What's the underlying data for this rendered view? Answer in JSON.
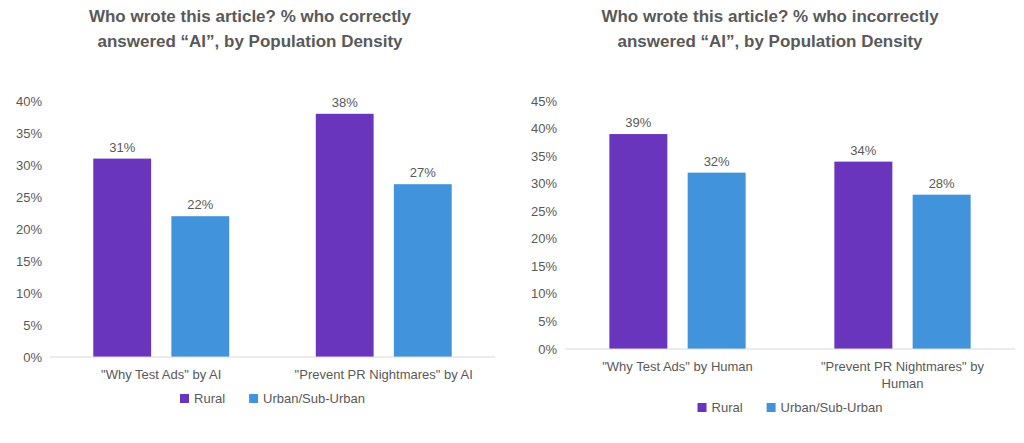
{
  "chart_data": [
    {
      "type": "bar",
      "title": "Who wrote this article? % who correctly answered “AI”, by Population Density",
      "categories": [
        "\"Why Test Ads\" by AI",
        "\"Prevent PR Nightmares\" by AI"
      ],
      "series": [
        {
          "name": "Rural",
          "color": "#6a35bd",
          "values": [
            31,
            38
          ],
          "value_labels": [
            "31%",
            "38%"
          ]
        },
        {
          "name": "Urban/Sub-Urban",
          "color": "#4193dc",
          "values": [
            22,
            27
          ],
          "value_labels": [
            "22%",
            "27%"
          ]
        }
      ],
      "ylim": [
        0,
        40
      ],
      "yticks": [
        {
          "value": 0,
          "label": "0%"
        },
        {
          "value": 5,
          "label": "5%"
        },
        {
          "value": 10,
          "label": "10%"
        },
        {
          "value": 15,
          "label": "15%"
        },
        {
          "value": 20,
          "label": "20%"
        },
        {
          "value": 25,
          "label": "25%"
        },
        {
          "value": 30,
          "label": "30%"
        },
        {
          "value": 35,
          "label": "35%"
        },
        {
          "value": 40,
          "label": "40%"
        }
      ],
      "grid": false,
      "legend": "bottom",
      "data_labels": true
    },
    {
      "type": "bar",
      "title": "Who wrote this article? % who incorrectly answered “AI”, by Population Density",
      "categories": [
        "\"Why Test Ads\" by Human",
        "\"Prevent PR Nightmares\" by Human"
      ],
      "series": [
        {
          "name": "Rural",
          "color": "#6a35bd",
          "values": [
            39,
            34
          ],
          "value_labels": [
            "39%",
            "34%"
          ]
        },
        {
          "name": "Urban/Sub-Urban",
          "color": "#4193dc",
          "values": [
            32,
            28
          ],
          "value_labels": [
            "32%",
            "28%"
          ]
        }
      ],
      "ylim": [
        0,
        45
      ],
      "yticks": [
        {
          "value": 0,
          "label": "0%"
        },
        {
          "value": 5,
          "label": "5%"
        },
        {
          "value": 10,
          "label": "10%"
        },
        {
          "value": 15,
          "label": "15%"
        },
        {
          "value": 20,
          "label": "20%"
        },
        {
          "value": 25,
          "label": "25%"
        },
        {
          "value": 30,
          "label": "30%"
        },
        {
          "value": 35,
          "label": "35%"
        },
        {
          "value": 40,
          "label": "40%"
        },
        {
          "value": 45,
          "label": "45%"
        }
      ],
      "grid": false,
      "legend": "bottom",
      "data_labels": true
    }
  ]
}
